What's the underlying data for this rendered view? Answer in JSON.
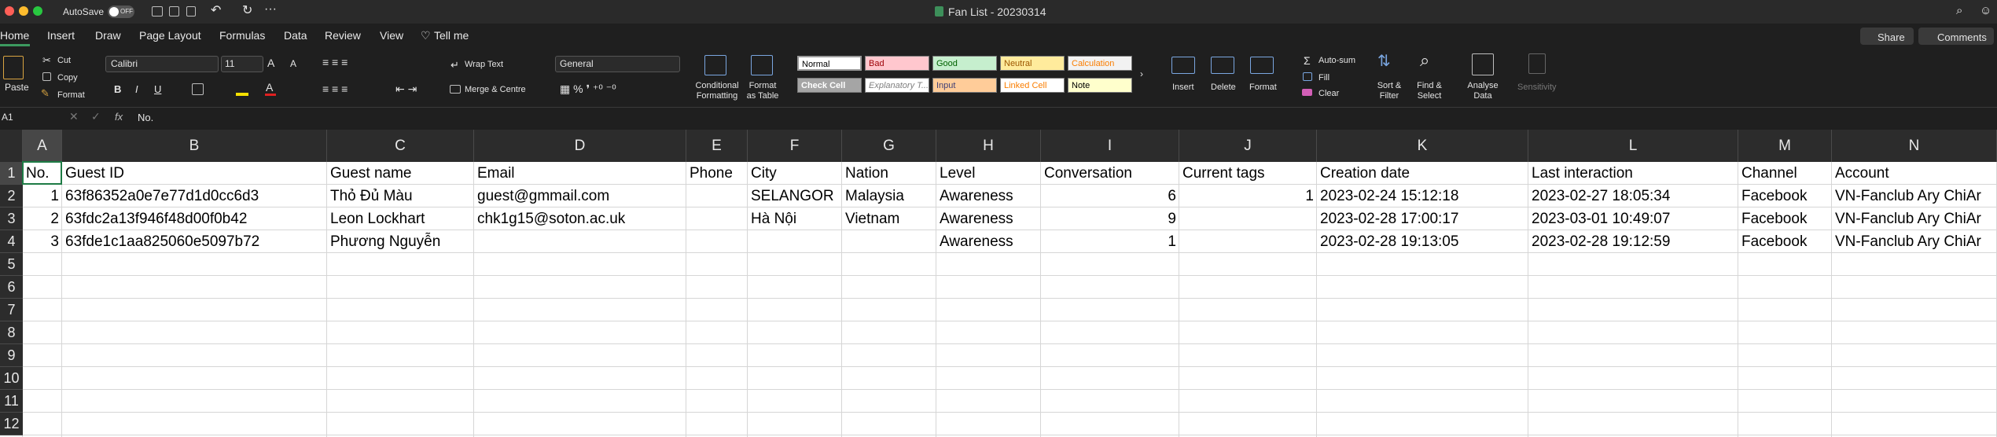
{
  "title_bar": {
    "autosave": "AutoSave",
    "autosave_state": "OFF",
    "document_title": "Fan List - 20230314",
    "share": "Share",
    "comments": "Comments"
  },
  "tabs": [
    "Home",
    "Insert",
    "Draw",
    "Page Layout",
    "Formulas",
    "Data",
    "Review",
    "View",
    "Tell me"
  ],
  "ribbon": {
    "paste": "Paste",
    "cut": "Cut",
    "copy": "Copy",
    "format_painter": "Format",
    "font": "Calibri",
    "font_size": 11,
    "wrap_text": "Wrap Text",
    "merge": "Merge & Centre",
    "number_format": "General",
    "conditional_formatting": "Conditional Formatting",
    "format_as_table": "Format as Table",
    "styles": [
      "Normal",
      "Bad",
      "Good",
      "Neutral",
      "Calculation",
      "Check Cell",
      "Explanatory T...",
      "Input",
      "Linked Cell",
      "Note"
    ],
    "insert": "Insert",
    "delete": "Delete",
    "format": "Format",
    "autosum": "Auto-sum",
    "fill": "Fill",
    "clear": "Clear",
    "sort_filter": "Sort & Filter",
    "find_select": "Find & Select",
    "analyse_data": "Analyse Data",
    "sensitivity": "Sensitivity"
  },
  "formula_bar": {
    "cell_ref": "A1",
    "fx": "fx",
    "content": "No."
  },
  "sheet": {
    "columns": [
      "A",
      "B",
      "C",
      "D",
      "E",
      "F",
      "G",
      "H",
      "I",
      "J",
      "K",
      "L",
      "M",
      "N"
    ],
    "rows": [
      1,
      2,
      3,
      4,
      5,
      6,
      7,
      8,
      9,
      10,
      11,
      12
    ],
    "cells": [
      [
        "No.",
        "Guest ID",
        "Guest name",
        "Email",
        "Phone",
        "City",
        "Nation",
        "Level",
        "Conversation",
        "Current tags",
        "Creation date",
        "Last interaction",
        "Channel",
        "Account"
      ],
      [
        1,
        "63f86352a0e7e77d1d0cc6d3",
        "Thỏ Đủ Màu",
        "guest@gmmail.com",
        null,
        "SELANGOR",
        "Malaysia",
        "Awareness",
        6,
        1,
        "2023-02-24 15:12:18",
        "2023-02-27 18:05:34",
        "Facebook",
        "VN-Fanclub Ary ChiAr"
      ],
      [
        2,
        "63fdc2a13f946f48d00f0b42",
        "Leon Lockhart",
        "chk1g15@soton.ac.uk",
        null,
        "Hà Nội",
        "Vietnam",
        "Awareness",
        9,
        null,
        "2023-02-28 17:00:17",
        "2023-03-01 10:49:07",
        "Facebook",
        "VN-Fanclub Ary ChiAr"
      ],
      [
        3,
        "63fde1c1aa825060e5097b72",
        "Phương Nguyễn",
        null,
        null,
        null,
        null,
        "Awareness",
        1,
        null,
        "2023-02-28 19:13:05",
        "2023-02-28 19:12:59",
        "Facebook",
        "VN-Fanclub Ary ChiAr"
      ]
    ]
  }
}
